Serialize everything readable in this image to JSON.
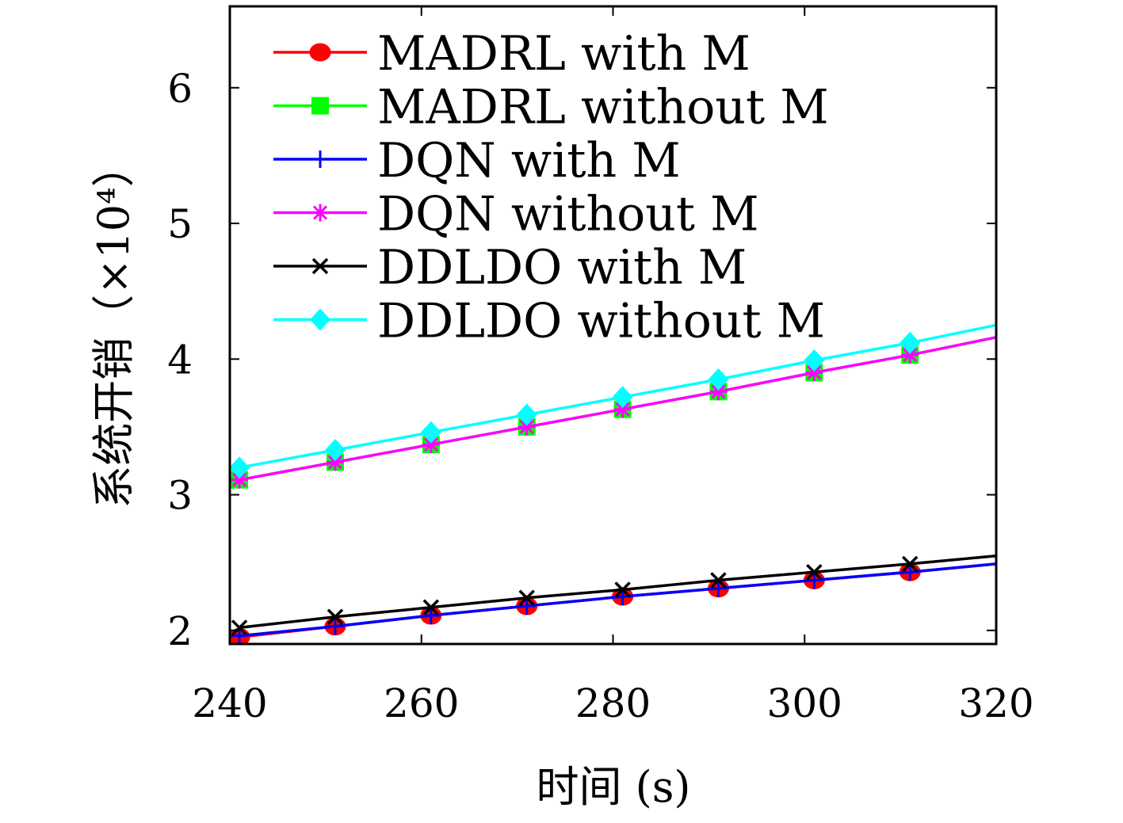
{
  "chart_data": {
    "type": "line",
    "xlabel": "时间 (s)",
    "ylabel": "系统开销（×10⁴）",
    "xlim": [
      240,
      320
    ],
    "ylim": [
      1.9,
      6.6
    ],
    "xticks": [
      "240",
      "260",
      "280",
      "300",
      "320"
    ],
    "yticks": [
      "2",
      "3",
      "4",
      "5",
      "6"
    ],
    "grid": false,
    "legend_position": "top-left",
    "series": [
      {
        "name": "MADRL with M",
        "color": "#ff0000",
        "marker": "circle",
        "x": [
          241,
          251,
          261,
          271,
          281,
          291,
          301,
          311,
          320
        ],
        "y": [
          1.95,
          2.03,
          2.11,
          2.18,
          2.25,
          2.31,
          2.37,
          2.43,
          2.49
        ]
      },
      {
        "name": "MADRL without M",
        "color": "#00ff00",
        "marker": "square",
        "x": [
          241,
          251,
          261,
          271,
          281,
          291,
          301,
          311,
          320
        ],
        "y": [
          3.11,
          3.24,
          3.37,
          3.5,
          3.63,
          3.76,
          3.9,
          4.03,
          4.16
        ]
      },
      {
        "name": "DQN with M",
        "color": "#0000ff",
        "marker": "plus",
        "x": [
          241,
          251,
          261,
          271,
          281,
          291,
          301,
          311,
          320
        ],
        "y": [
          1.96,
          2.03,
          2.11,
          2.18,
          2.25,
          2.31,
          2.37,
          2.43,
          2.49
        ]
      },
      {
        "name": "DQN without M",
        "color": "#ff00ff",
        "marker": "star",
        "x": [
          241,
          251,
          261,
          271,
          281,
          291,
          301,
          311,
          320
        ],
        "y": [
          3.11,
          3.24,
          3.37,
          3.5,
          3.63,
          3.76,
          3.9,
          4.03,
          4.16
        ]
      },
      {
        "name": "DDLDO with M",
        "color": "#000000",
        "marker": "x",
        "x": [
          241,
          251,
          261,
          271,
          281,
          291,
          301,
          311,
          320
        ],
        "y": [
          2.02,
          2.1,
          2.17,
          2.24,
          2.3,
          2.37,
          2.43,
          2.49,
          2.55
        ]
      },
      {
        "name": "DDLDO without M",
        "color": "#00ffff",
        "marker": "diamond",
        "x": [
          241,
          251,
          261,
          271,
          281,
          291,
          301,
          311,
          320
        ],
        "y": [
          3.2,
          3.33,
          3.46,
          3.59,
          3.72,
          3.85,
          3.99,
          4.12,
          4.25
        ]
      }
    ]
  }
}
